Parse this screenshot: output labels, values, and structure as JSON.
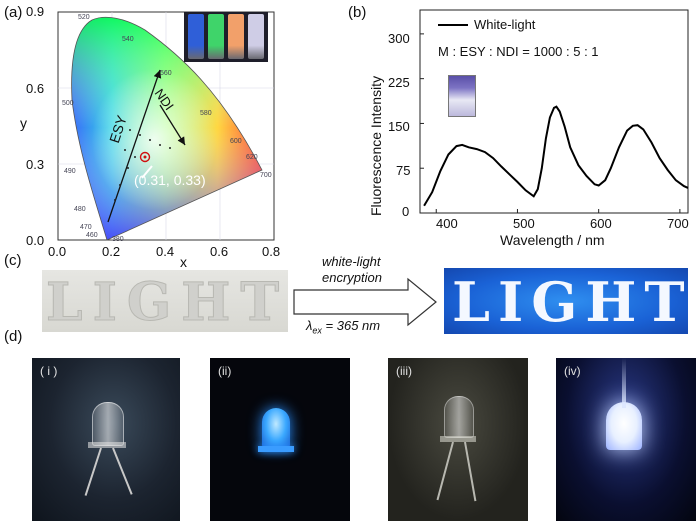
{
  "panel_labels": {
    "a": "(a)",
    "b": "(b)",
    "c": "(c)",
    "d": "(d)"
  },
  "cie": {
    "x_label": "x",
    "y_label": "y",
    "x_ticks": [
      "0.0",
      "0.2",
      "0.4",
      "0.6",
      "0.8"
    ],
    "y_ticks": [
      "0.0",
      "0.3",
      "0.6",
      "0.9"
    ],
    "wavelength_labels": [
      "520",
      "540",
      "560",
      "580",
      "600",
      "620",
      "700",
      "500",
      "490",
      "480",
      "470",
      "460",
      "380"
    ],
    "arrow_labels": {
      "esy": "ESY",
      "ndi": "NDI"
    },
    "point_label": "(0.31, 0.33)",
    "vial_colors": [
      "#2f5fd8",
      "#3fd46a",
      "#f2a06a",
      "#cfcde6"
    ]
  },
  "spectrum": {
    "legend": "White-light",
    "ratio_text": "M : ESY : NDI = 1000 : 5 : 1",
    "x_label": "Wavelength / nm",
    "y_label": "Fluorescence Intensity",
    "x_ticks": [
      "400",
      "500",
      "600",
      "700"
    ],
    "y_ticks": [
      "0",
      "75",
      "150",
      "225",
      "300"
    ]
  },
  "chart_data": {
    "type": "line",
    "title": "",
    "xlabel": "Wavelength / nm",
    "ylabel": "Fluorescence Intensity",
    "xlim": [
      380,
      710
    ],
    "ylim": [
      0,
      340
    ],
    "series": [
      {
        "name": "White-light",
        "x": [
          385,
          395,
          405,
          415,
          425,
          432,
          440,
          450,
          460,
          470,
          480,
          490,
          500,
          510,
          520,
          525,
          530,
          535,
          540,
          545,
          548,
          552,
          558,
          565,
          575,
          585,
          595,
          600,
          608,
          615,
          625,
          635,
          642,
          648,
          655,
          665,
          675,
          685,
          695,
          705,
          710
        ],
        "y": [
          12,
          35,
          70,
          98,
          112,
          114,
          110,
          107,
          102,
          92,
          78,
          65,
          52,
          38,
          28,
          40,
          75,
          125,
          160,
          176,
          178,
          170,
          145,
          110,
          80,
          62,
          48,
          46,
          55,
          75,
          110,
          138,
          146,
          147,
          140,
          118,
          92,
          72,
          55,
          45,
          42
        ]
      }
    ]
  },
  "encryption": {
    "word_before": "LIGHT",
    "word_after": "LIGHT",
    "arrow_line1": "white-light",
    "arrow_line2": "encryption",
    "lambda_symbol": "λ",
    "lambda_sub": "ex",
    "lambda_value": "= 365 nm"
  },
  "led_photos": [
    {
      "label": "( i )"
    },
    {
      "label": "(ii)"
    },
    {
      "label": "(iii)"
    },
    {
      "label": "(iv)"
    }
  ]
}
